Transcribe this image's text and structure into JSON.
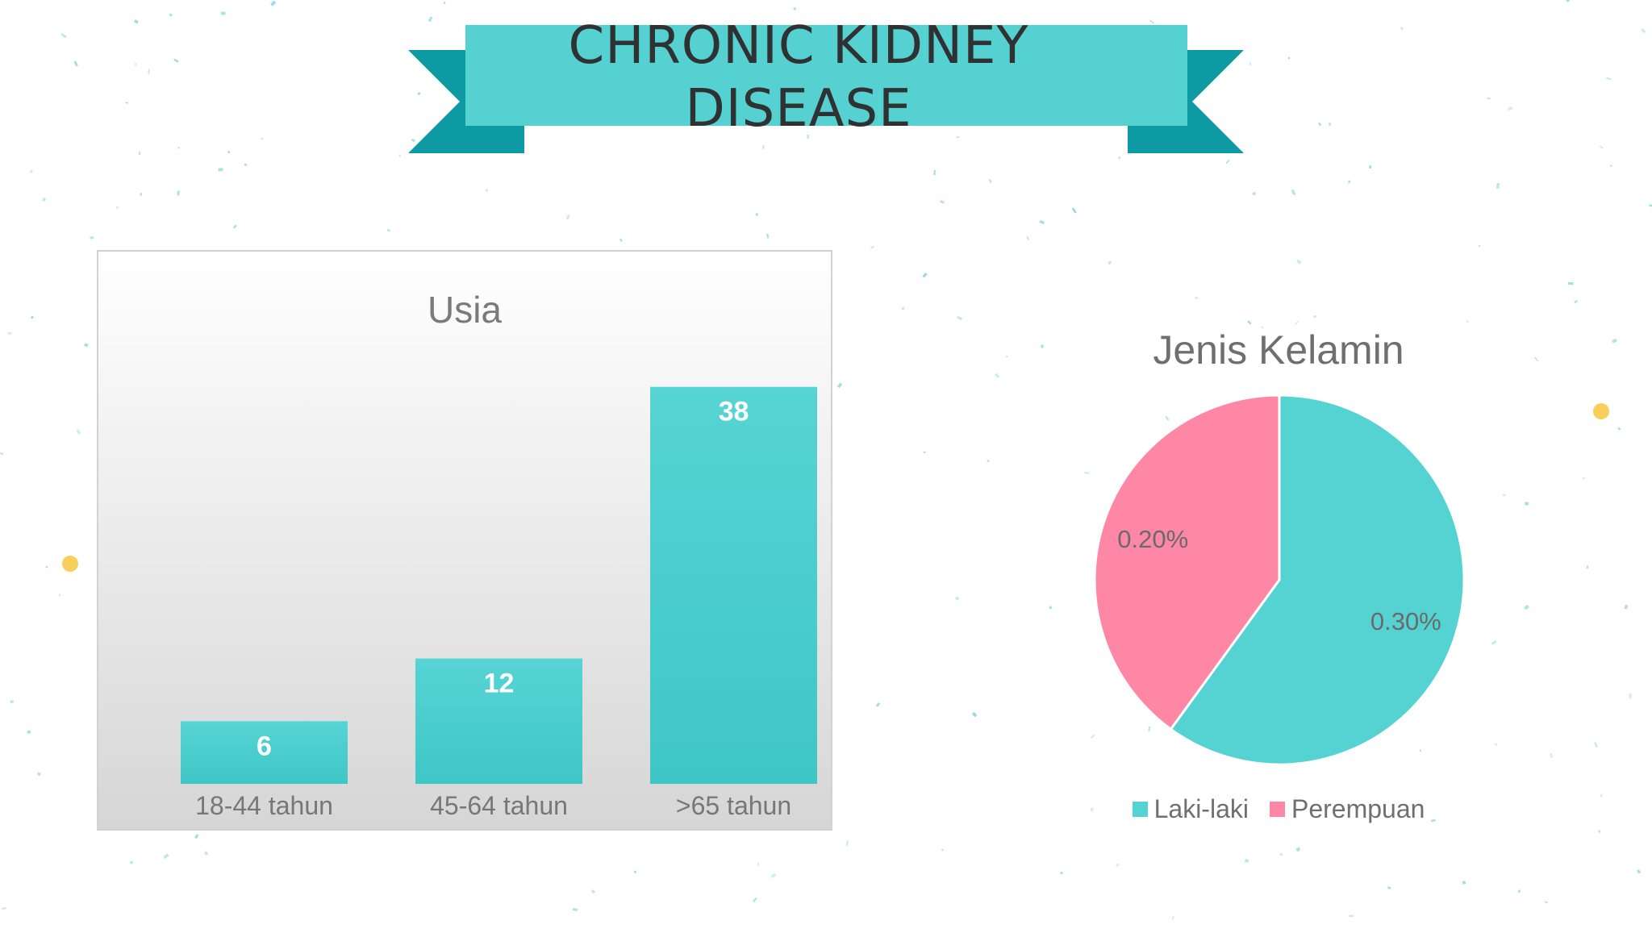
{
  "banner": {
    "title_line1": "CHRONIC KIDNEY",
    "title_line2": "DISEASE"
  },
  "colors": {
    "banner_main": "#55d1d1",
    "banner_tail": "#0d9aa2",
    "bar": "#3fc6c6",
    "bar_top": "#57d4d4",
    "pie_male": "#55d3d3",
    "pie_female": "#ff87a6",
    "text": "#6f6f6f"
  },
  "chart_data": [
    {
      "type": "bar",
      "title": "Usia",
      "categories": [
        "18-44 tahun",
        "45-64 tahun",
        ">65 tahun"
      ],
      "values": [
        6,
        12,
        38
      ],
      "data_labels": [
        "6",
        "12",
        "38"
      ],
      "ylim": [
        0,
        44
      ],
      "grid": false
    },
    {
      "type": "pie",
      "title": "Jenis Kelamin",
      "labels": [
        "Laki-laki",
        "Perempuan"
      ],
      "values": [
        0.3,
        0.2
      ],
      "data_labels": [
        "0.30%",
        "0.20%"
      ],
      "legend_position": "bottom"
    }
  ]
}
